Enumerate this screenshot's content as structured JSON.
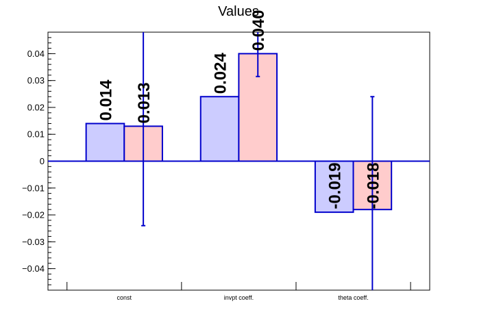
{
  "chart_data": {
    "type": "bar",
    "title": "Values",
    "xlabel": "",
    "ylabel": "",
    "categories": [
      "const",
      "invpt coeff.",
      "theta coeff."
    ],
    "series": [
      {
        "values": [
          0.014,
          0.024,
          -0.019
        ],
        "errors": [
          0,
          0,
          0
        ],
        "fill": "#ccccff",
        "labels": [
          "0.014",
          "0.024",
          "-0.019"
        ]
      },
      {
        "values": [
          0.013,
          0.04,
          -0.018
        ],
        "errors": [
          0.037,
          0.0085,
          0.042
        ],
        "fill": "#ffcccc",
        "labels": [
          "0.013",
          "0.040",
          "-0.018"
        ]
      }
    ],
    "ylim": [
      -0.048,
      0.048
    ],
    "yticks": [
      -0.04,
      -0.03,
      -0.02,
      -0.01,
      0,
      0.01,
      0.02,
      0.03,
      0.04
    ],
    "ytick_labels": [
      "−0.04",
      "−0.03",
      "−0.02",
      "−0.01",
      "0",
      "0.01",
      "0.02",
      "0.03",
      "0.04"
    ],
    "grid": false,
    "legend": "none",
    "colors": {
      "axis": "#000000",
      "bar_stroke": "#0000cc",
      "error_bar": "#0000cc"
    }
  }
}
